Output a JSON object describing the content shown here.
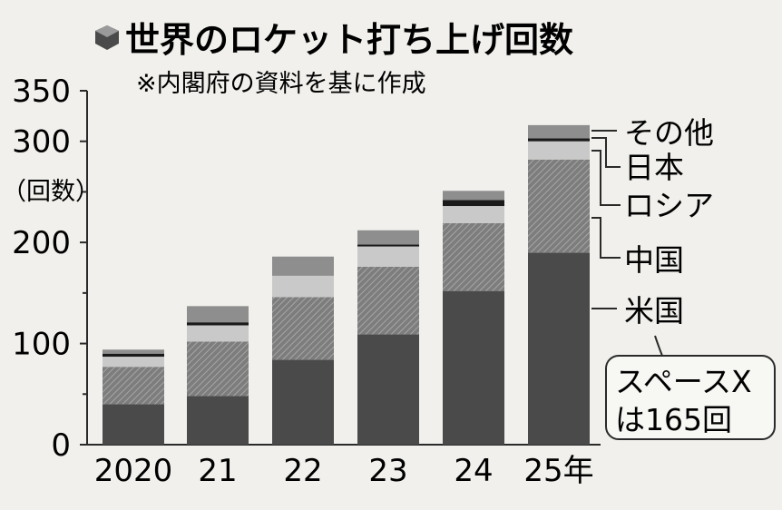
{
  "chart_data": {
    "type": "bar",
    "stacked": true,
    "title": "世界のロケット打ち上げ回数",
    "subtitle": "※内閣府の資料を基に作成",
    "ylabel": "（回数）",
    "ylim": [
      0,
      350
    ],
    "yticks": [
      0,
      100,
      200,
      300,
      350
    ],
    "categories": [
      "2020",
      "21",
      "22",
      "23",
      "24",
      "25年"
    ],
    "series": [
      {
        "name": "米国",
        "color": "#4a4a4a",
        "pattern": "solid",
        "values": [
          40,
          48,
          84,
          109,
          152,
          190
        ]
      },
      {
        "name": "中国",
        "color": "#8e8e8e",
        "pattern": "hatch",
        "values": [
          37,
          54,
          62,
          67,
          67,
          92
        ]
      },
      {
        "name": "ロシア",
        "color": "#c9c9c9",
        "pattern": "solid",
        "values": [
          10,
          16,
          21,
          20,
          17,
          18
        ]
      },
      {
        "name": "日本",
        "color": "#1a1a1a",
        "pattern": "solid",
        "values": [
          3,
          3,
          0,
          2,
          6,
          3
        ]
      },
      {
        "name": "その他",
        "color": "#8e8e8e",
        "pattern": "solid",
        "values": [
          4,
          16,
          19,
          14,
          9,
          13
        ]
      }
    ],
    "annotation": {
      "line1": "スペースX",
      "line2": "は165回"
    }
  }
}
